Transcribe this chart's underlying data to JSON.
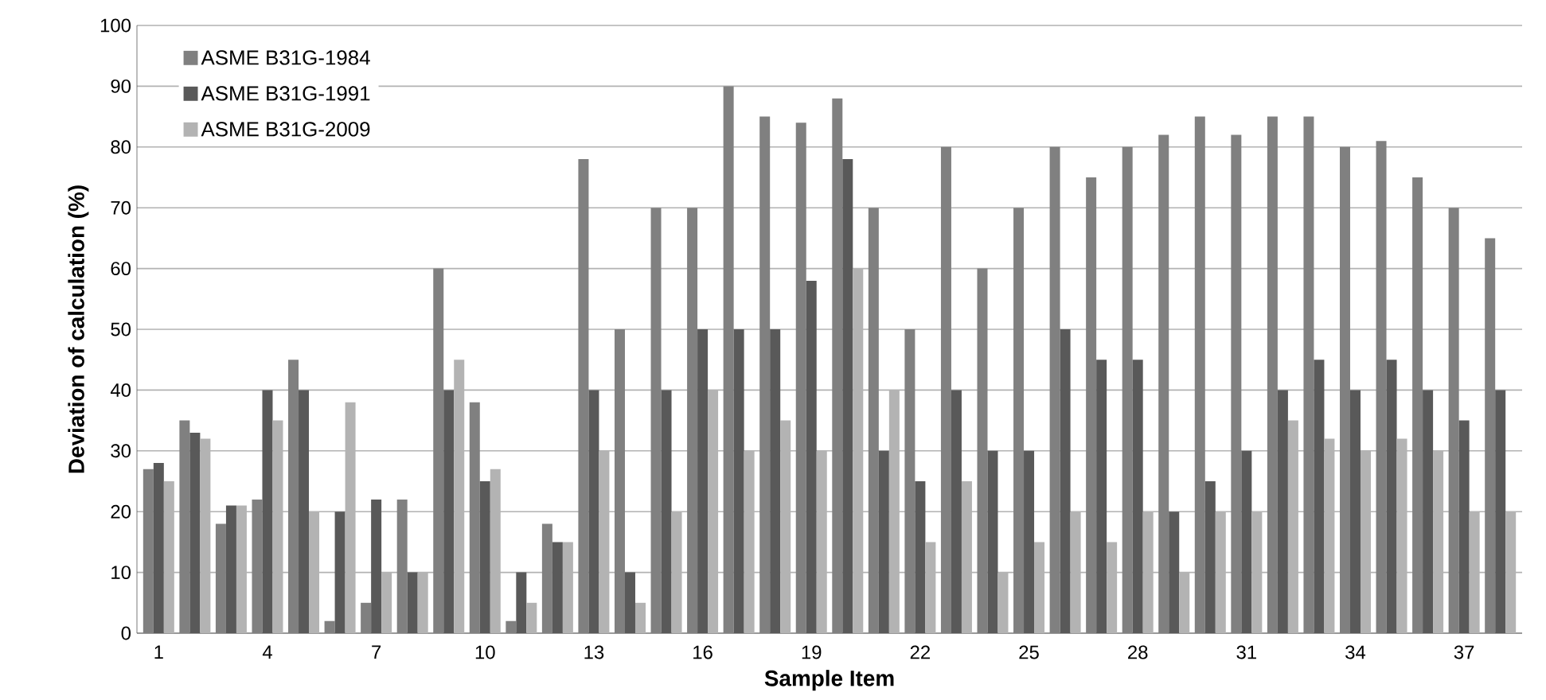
{
  "chart_data": {
    "type": "bar",
    "xlabel": "Sample Item",
    "ylabel": "Deviation of calculation (%)",
    "categories": [
      "1",
      null,
      null,
      "4",
      null,
      null,
      "7",
      null,
      null,
      "10",
      null,
      null,
      "13",
      null,
      null,
      "16",
      null,
      null,
      "19",
      null,
      null,
      "22",
      null,
      null,
      "25",
      null,
      null,
      "28",
      null,
      null,
      "31",
      null,
      null,
      "34",
      null,
      null,
      "37",
      null
    ],
    "series": [
      {
        "name": "ASME B31G-1984",
        "color": "#808080",
        "values": [
          27,
          35,
          18,
          22,
          45,
          2,
          5,
          22,
          60,
          38,
          2,
          18,
          78,
          50,
          70,
          70,
          90,
          85,
          84,
          88,
          70,
          50,
          80,
          60,
          70,
          80,
          75,
          80,
          82,
          85,
          82,
          85,
          85,
          80,
          81,
          75,
          70,
          65
        ]
      },
      {
        "name": "ASME B31G-1991",
        "color": "#595959",
        "values": [
          28,
          33,
          21,
          40,
          40,
          20,
          22,
          10,
          40,
          25,
          10,
          15,
          40,
          10,
          40,
          50,
          50,
          50,
          58,
          78,
          30,
          25,
          40,
          30,
          30,
          50,
          45,
          45,
          20,
          25,
          30,
          40,
          45,
          40,
          45,
          40,
          35,
          40
        ]
      },
      {
        "name": "ASME B31G-2009",
        "color": "#b3b3b3",
        "values": [
          25,
          32,
          21,
          35,
          20,
          38,
          10,
          10,
          45,
          27,
          5,
          15,
          30,
          5,
          20,
          40,
          30,
          35,
          30,
          60,
          40,
          15,
          25,
          10,
          15,
          20,
          15,
          20,
          10,
          20,
          20,
          35,
          32,
          30,
          32,
          30,
          20,
          20
        ]
      }
    ],
    "ylim": [
      0,
      100
    ],
    "yticks": [
      0,
      10,
      20,
      30,
      40,
      50,
      60,
      70,
      80,
      90,
      100
    ],
    "grid": "y",
    "legend": "top left"
  }
}
